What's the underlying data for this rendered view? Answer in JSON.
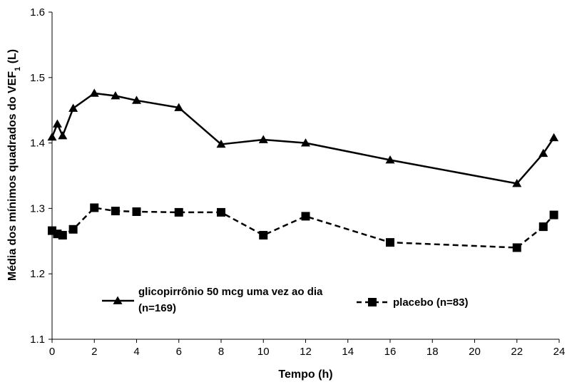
{
  "chart_data": {
    "type": "line",
    "xlabel": "Tempo (h)",
    "ylabel_prefix": "Média dos mínimos quadrados do VEF",
    "ylabel_subscript": "1",
    "ylabel_suffix": " (L)",
    "xlim": [
      0,
      24
    ],
    "ylim": [
      1.1,
      1.6
    ],
    "xticks": [
      "0",
      "2",
      "4",
      "6",
      "8",
      "10",
      "12",
      "14",
      "16",
      "18",
      "20",
      "22",
      "24"
    ],
    "yticks": [
      "1.1",
      "1.2",
      "1.3",
      "1.4",
      "1.5",
      "1.6"
    ],
    "grid": false,
    "series": [
      {
        "name_line1": "glicopirrônio 50 mcg uma vez ao dia",
        "name_line2": "(n=169)",
        "marker": "triangle",
        "line_style": "solid",
        "color": "#000000",
        "x": [
          0,
          0.25,
          0.5,
          1,
          2,
          3,
          4,
          6,
          8,
          10,
          12,
          16,
          22,
          23.25,
          23.75
        ],
        "y": [
          1.409,
          1.429,
          1.411,
          1.453,
          1.476,
          1.472,
          1.465,
          1.454,
          1.398,
          1.405,
          1.4,
          1.374,
          1.338,
          1.384,
          1.408
        ]
      },
      {
        "name": "placebo (n=83)",
        "marker": "square",
        "line_style": "dashed",
        "color": "#000000",
        "x": [
          0,
          0.25,
          0.5,
          1,
          2,
          3,
          4,
          6,
          8,
          10,
          12,
          16,
          22,
          23.25,
          23.75
        ],
        "y": [
          1.266,
          1.261,
          1.259,
          1.268,
          1.301,
          1.296,
          1.295,
          1.294,
          1.294,
          1.259,
          1.288,
          1.248,
          1.24,
          1.272,
          1.29
        ]
      }
    ]
  }
}
